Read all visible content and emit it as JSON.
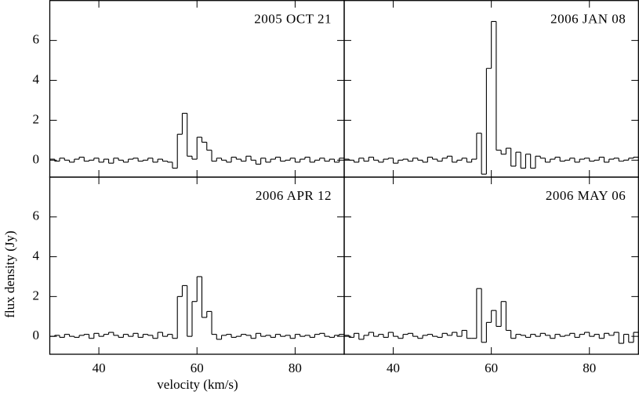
{
  "chart_data": [
    {
      "type": "step",
      "title": "2005 OCT 21",
      "x": [
        30.5,
        31.5,
        32.5,
        33.5,
        34.5,
        35.5,
        36.5,
        37.5,
        38.5,
        39.5,
        40.5,
        41.5,
        42.5,
        43.5,
        44.5,
        45.5,
        46.5,
        47.5,
        48.5,
        49.5,
        50.5,
        51.5,
        52.5,
        53.5,
        54.5,
        55.5,
        56.5,
        57.5,
        58.5,
        59.5,
        60.5,
        61.5,
        62.5,
        63.5,
        64.5,
        65.5,
        66.5,
        67.5,
        68.5,
        69.5,
        70.5,
        71.5,
        72.5,
        73.5,
        74.5,
        75.5,
        76.5,
        77.5,
        78.5,
        79.5,
        80.5,
        81.5,
        82.5,
        83.5,
        84.5,
        85.5,
        86.5,
        87.5,
        88.5,
        89.5
      ],
      "values": [
        0.05,
        -0.05,
        0.1,
        0,
        -0.1,
        0.05,
        0.15,
        -0.05,
        0,
        0.1,
        -0.1,
        0.05,
        -0.15,
        0.1,
        0,
        -0.1,
        0.05,
        0.1,
        -0.05,
        0,
        0.1,
        -0.1,
        0.05,
        -0.05,
        -0.1,
        -0.4,
        1.3,
        2.35,
        0.2,
        0.05,
        1.15,
        0.9,
        0.5,
        -0.05,
        0.1,
        0,
        -0.1,
        0.15,
        0.05,
        -0.05,
        0.2,
        0,
        -0.2,
        0.1,
        -0.1,
        0.05,
        0.15,
        -0.05,
        0,
        0.1,
        -0.1,
        0.05,
        0.15,
        -0.1,
        0,
        0.1,
        -0.05,
        0.05,
        -0.1,
        0.1
      ],
      "xlim": [
        30,
        90
      ],
      "ylim": [
        -0.85,
        8
      ],
      "xticks": [
        40,
        60,
        80
      ],
      "yticks": [
        0,
        2,
        4,
        6
      ]
    },
    {
      "type": "step",
      "title": "2006 JAN 08",
      "x": [
        30.5,
        31.5,
        32.5,
        33.5,
        34.5,
        35.5,
        36.5,
        37.5,
        38.5,
        39.5,
        40.5,
        41.5,
        42.5,
        43.5,
        44.5,
        45.5,
        46.5,
        47.5,
        48.5,
        49.5,
        50.5,
        51.5,
        52.5,
        53.5,
        54.5,
        55.5,
        56.5,
        57.5,
        58.5,
        59.5,
        60.5,
        61.5,
        62.5,
        63.5,
        64.5,
        65.5,
        66.5,
        67.5,
        68.5,
        69.5,
        70.5,
        71.5,
        72.5,
        73.5,
        74.5,
        75.5,
        76.5,
        77.5,
        78.5,
        79.5,
        80.5,
        81.5,
        82.5,
        83.5,
        84.5,
        85.5,
        86.5,
        87.5,
        88.5,
        89.5
      ],
      "values": [
        0.05,
        0,
        -0.1,
        0.1,
        -0.05,
        0.15,
        0,
        -0.1,
        0.05,
        0.1,
        -0.15,
        0,
        0.05,
        -0.05,
        0.1,
        0,
        -0.1,
        0.15,
        0.05,
        -0.05,
        0.1,
        0.2,
        -0.1,
        0,
        0.1,
        -0.1,
        0.05,
        1.35,
        -0.7,
        4.6,
        6.95,
        0.5,
        0.3,
        0.6,
        -0.3,
        0.4,
        -0.4,
        0.3,
        -0.4,
        0.2,
        0.1,
        -0.1,
        0.05,
        0.15,
        -0.05,
        0,
        0.1,
        -0.1,
        0.05,
        0.1,
        -0.05,
        0,
        0.15,
        -0.1,
        0.05,
        0.1,
        -0.05,
        0,
        0.1,
        0.15
      ],
      "xlim": [
        30,
        90
      ],
      "ylim": [
        -0.85,
        8
      ],
      "xticks": [
        40,
        60,
        80
      ],
      "yticks": [
        0,
        2,
        4,
        6
      ]
    },
    {
      "type": "step",
      "title": "2006 APR 12",
      "x": [
        30.5,
        31.5,
        32.5,
        33.5,
        34.5,
        35.5,
        36.5,
        37.5,
        38.5,
        39.5,
        40.5,
        41.5,
        42.5,
        43.5,
        44.5,
        45.5,
        46.5,
        47.5,
        48.5,
        49.5,
        50.5,
        51.5,
        52.5,
        53.5,
        54.5,
        55.5,
        56.5,
        57.5,
        58.5,
        59.5,
        60.5,
        61.5,
        62.5,
        63.5,
        64.5,
        65.5,
        66.5,
        67.5,
        68.5,
        69.5,
        70.5,
        71.5,
        72.5,
        73.5,
        74.5,
        75.5,
        76.5,
        77.5,
        78.5,
        79.5,
        80.5,
        81.5,
        82.5,
        83.5,
        84.5,
        85.5,
        86.5,
        87.5,
        88.5,
        89.5
      ],
      "values": [
        0,
        0.05,
        -0.05,
        0.1,
        0,
        -0.05,
        0.05,
        0.1,
        -0.1,
        0.15,
        0,
        0.1,
        0.2,
        0.05,
        -0.05,
        0.1,
        0,
        0.15,
        -0.05,
        0.1,
        0.05,
        -0.1,
        0.2,
        0,
        0.1,
        -0.1,
        2.0,
        2.55,
        0.0,
        1.75,
        3.0,
        0.95,
        1.25,
        0.1,
        -0.15,
        0.05,
        0.1,
        -0.05,
        0,
        0.1,
        0.05,
        -0.1,
        0.15,
        0,
        0.05,
        -0.05,
        0.1,
        0,
        0.05,
        -0.1,
        0.1,
        0,
        0.05,
        -0.05,
        0.1,
        0.15,
        0,
        -0.05,
        0.05,
        0.1
      ],
      "xlim": [
        30,
        90
      ],
      "ylim": [
        -0.9,
        8
      ],
      "xticks": [
        40,
        60,
        80
      ],
      "yticks": [
        0,
        2,
        4,
        6
      ]
    },
    {
      "type": "step",
      "title": "2006 MAY 06",
      "x": [
        30.5,
        31.5,
        32.5,
        33.5,
        34.5,
        35.5,
        36.5,
        37.5,
        38.5,
        39.5,
        40.5,
        41.5,
        42.5,
        43.5,
        44.5,
        45.5,
        46.5,
        47.5,
        48.5,
        49.5,
        50.5,
        51.5,
        52.5,
        53.5,
        54.5,
        55.5,
        56.5,
        57.5,
        58.5,
        59.5,
        60.5,
        61.5,
        62.5,
        63.5,
        64.5,
        65.5,
        66.5,
        67.5,
        68.5,
        69.5,
        70.5,
        71.5,
        72.5,
        73.5,
        74.5,
        75.5,
        76.5,
        77.5,
        78.5,
        79.5,
        80.5,
        81.5,
        82.5,
        83.5,
        84.5,
        85.5,
        86.5,
        87.5,
        88.5,
        89.5
      ],
      "values": [
        0.05,
        -0.05,
        0.15,
        -0.15,
        0.05,
        0.2,
        0,
        0.1,
        -0.05,
        0.2,
        0,
        -0.1,
        0.1,
        0.15,
        0,
        -0.1,
        0.05,
        0.1,
        0,
        -0.05,
        0.15,
        0.05,
        0.2,
        0,
        0.3,
        -0.1,
        -0.1,
        2.4,
        -0.3,
        0.7,
        1.3,
        0.5,
        1.75,
        0.3,
        -0.1,
        0.1,
        0.05,
        -0.05,
        0.1,
        0,
        0.15,
        0.05,
        -0.1,
        0.1,
        0,
        0.05,
        0.15,
        -0.05,
        0.1,
        0.2,
        0,
        0.1,
        -0.1,
        0.15,
        0.05,
        0.2,
        -0.35,
        0.1,
        -0.3,
        0.2
      ],
      "xlim": [
        30,
        90
      ],
      "ylim": [
        -0.9,
        8
      ],
      "xticks": [
        40,
        60,
        80
      ],
      "yticks": [
        0,
        2,
        4,
        6
      ]
    }
  ],
  "xlabel": "velocity (km/s)",
  "ylabel": "flux density (Jy)"
}
